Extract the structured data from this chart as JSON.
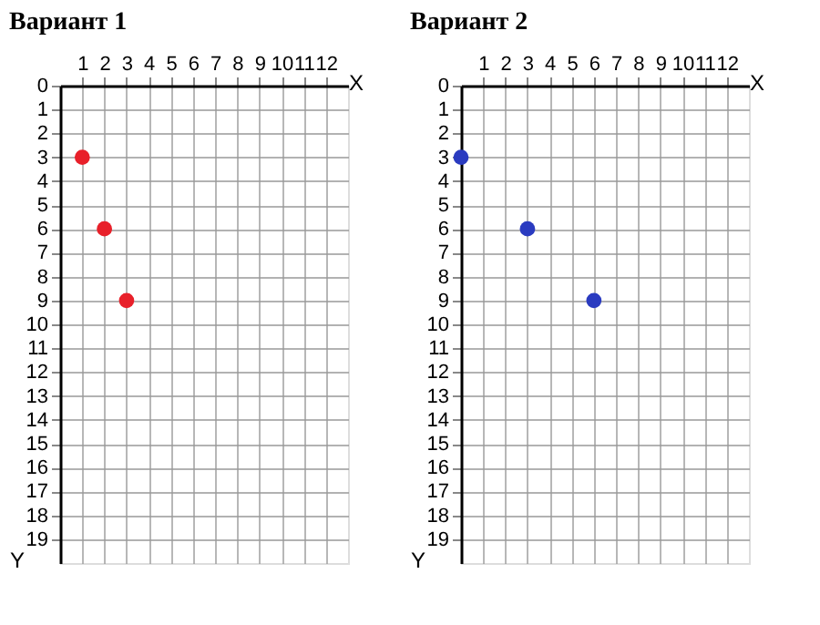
{
  "chart_data": [
    {
      "type": "scatter",
      "title": "Вариант 1",
      "xlabel": "X",
      "ylabel": "Y",
      "xlim": [
        0,
        13
      ],
      "ylim": [
        20,
        0
      ],
      "xticks": [
        1,
        2,
        3,
        4,
        5,
        6,
        7,
        8,
        9,
        10,
        11,
        12
      ],
      "yticks": [
        0,
        1,
        2,
        3,
        4,
        5,
        6,
        7,
        8,
        9,
        10,
        11,
        12,
        13,
        14,
        15,
        16,
        17,
        18,
        19
      ],
      "grid": true,
      "marker": "circle",
      "series": [
        {
          "color": "#e8202a",
          "x": [
            1,
            2,
            3
          ],
          "values": [
            3,
            6,
            9
          ]
        }
      ]
    },
    {
      "type": "scatter",
      "title": "Вариант 2",
      "xlabel": "X",
      "ylabel": "Y",
      "xlim": [
        0,
        13
      ],
      "ylim": [
        20,
        0
      ],
      "xticks": [
        1,
        2,
        3,
        4,
        5,
        6,
        7,
        8,
        9,
        10,
        11,
        12
      ],
      "yticks": [
        0,
        1,
        2,
        3,
        4,
        5,
        6,
        7,
        8,
        9,
        10,
        11,
        12,
        13,
        14,
        15,
        16,
        17,
        18,
        19
      ],
      "grid": true,
      "marker": "circle",
      "series": [
        {
          "color": "#2a3bc0",
          "x": [
            0,
            3,
            6
          ],
          "values": [
            3,
            6,
            9
          ]
        }
      ]
    }
  ]
}
